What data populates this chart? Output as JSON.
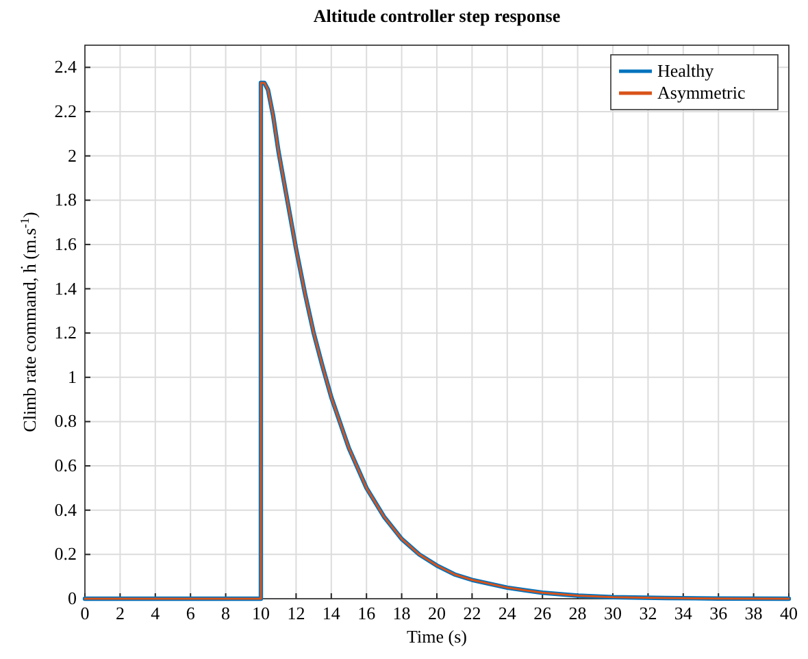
{
  "chart_data": {
    "type": "line",
    "title": "Altitude controller step response",
    "xlabel": "Time (s)",
    "ylabel": "Climb rate command, ḣ (m.s$^{-1}$)",
    "xlim": [
      0,
      40
    ],
    "xticks": [
      0,
      2,
      4,
      6,
      8,
      10,
      12,
      14,
      16,
      18,
      20,
      22,
      24,
      26,
      28,
      30,
      32,
      34,
      36,
      38,
      40
    ],
    "ylim": [
      0,
      2.5
    ],
    "yticks": [
      0,
      0.2,
      0.4,
      0.6,
      0.8,
      1,
      1.2,
      1.4,
      1.6,
      1.8,
      2,
      2.2,
      2.4
    ],
    "grid": true,
    "legend": "top right",
    "line_style": "solid",
    "x": [
      0,
      10,
      10,
      10.2,
      10.4,
      10.7,
      11,
      11.5,
      12,
      12.5,
      13,
      13.5,
      14,
      15,
      16,
      17,
      18,
      19,
      20,
      21,
      22,
      24,
      26,
      28,
      30,
      33,
      36,
      40
    ],
    "series": [
      {
        "name": "Healthy",
        "color": "#0072bd",
        "values": [
          0,
          0,
          2.33,
          2.33,
          2.3,
          2.18,
          2.02,
          1.8,
          1.58,
          1.38,
          1.2,
          1.05,
          0.91,
          0.68,
          0.5,
          0.37,
          0.27,
          0.2,
          0.15,
          0.11,
          0.085,
          0.05,
          0.027,
          0.014,
          0.007,
          0.003,
          0.001,
          0
        ]
      },
      {
        "name": "Asymmetric",
        "color": "#d95319",
        "values": [
          0,
          0,
          2.33,
          2.33,
          2.3,
          2.18,
          2.02,
          1.8,
          1.58,
          1.38,
          1.2,
          1.05,
          0.91,
          0.68,
          0.5,
          0.37,
          0.27,
          0.2,
          0.15,
          0.11,
          0.085,
          0.05,
          0.027,
          0.014,
          0.007,
          0.003,
          0.001,
          0
        ]
      }
    ]
  }
}
